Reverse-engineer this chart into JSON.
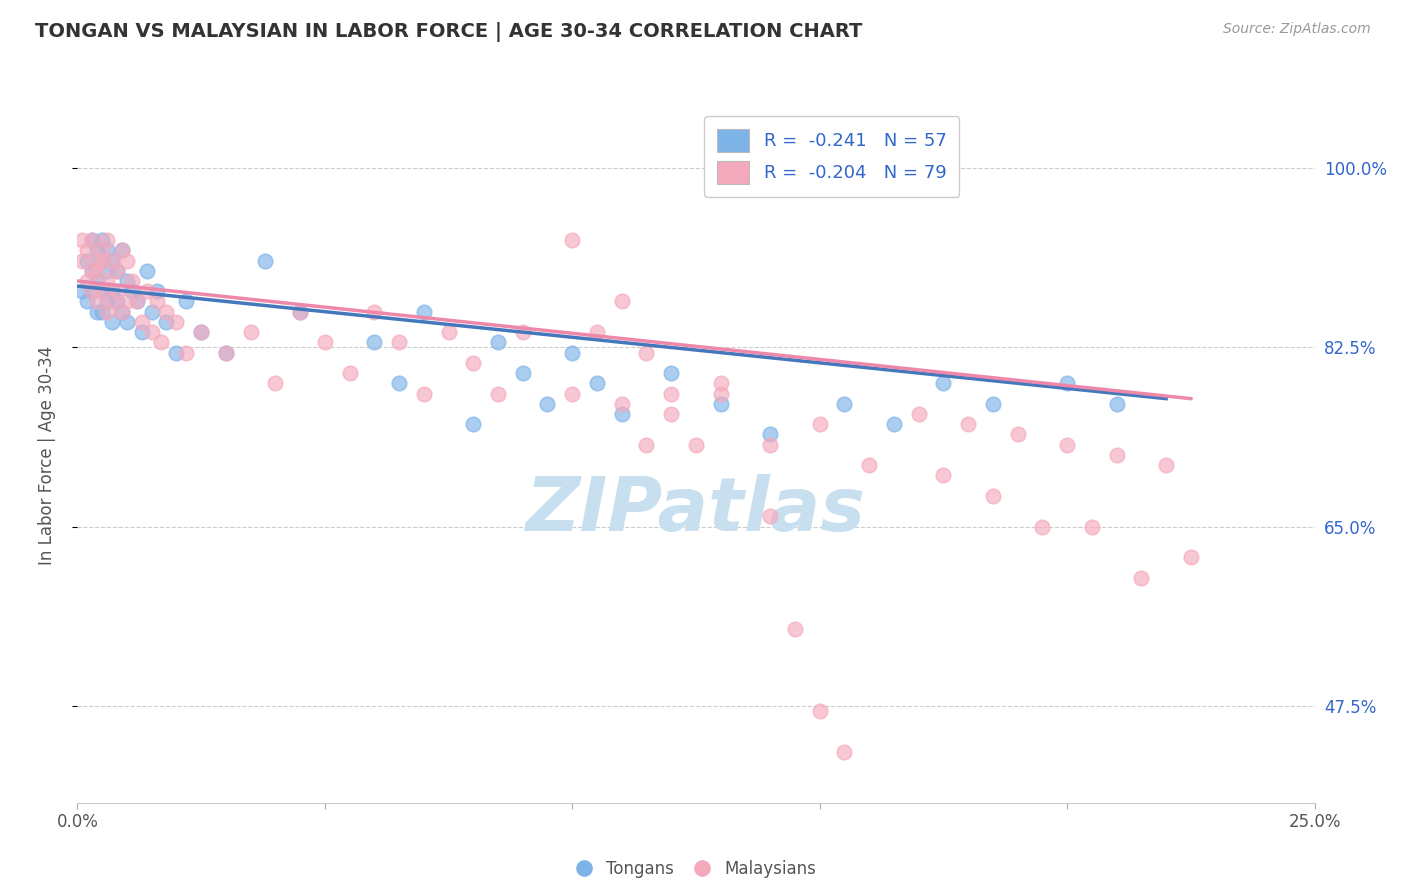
{
  "title": "TONGAN VS MALAYSIAN IN LABOR FORCE | AGE 30-34 CORRELATION CHART",
  "source_text": "Source: ZipAtlas.com",
  "ylabel": "In Labor Force | Age 30-34",
  "xlim": [
    0.0,
    0.25
  ],
  "ylim": [
    0.38,
    1.06
  ],
  "xtick_positions": [
    0.0,
    0.05,
    0.1,
    0.15,
    0.2,
    0.25
  ],
  "xticklabels": [
    "0.0%",
    "",
    "",
    "",
    "",
    "25.0%"
  ],
  "ytick_positions": [
    0.475,
    0.65,
    0.825,
    1.0
  ],
  "yticklabels": [
    "47.5%",
    "65.0%",
    "82.5%",
    "100.0%"
  ],
  "tongan_color": "#7EB3E8",
  "malaysian_color": "#F4AABC",
  "tongan_line_color": "#4477BB",
  "malaysian_line_color": "#EE88AA",
  "tongan_R": -0.241,
  "tongan_N": 57,
  "malaysian_R": -0.204,
  "malaysian_N": 79,
  "background_color": "#ffffff",
  "grid_color": "#cccccc",
  "watermark_text": "ZIPatlas",
  "watermark_color": "#c8dff0",
  "legend_text_color": "#3366cc",
  "ton_line_x0": 0.0,
  "ton_line_y0": 0.885,
  "ton_line_x1": 0.22,
  "ton_line_y1": 0.775,
  "mal_line_x0": 0.0,
  "mal_line_y0": 0.89,
  "mal_line_x1": 0.225,
  "mal_line_y1": 0.775,
  "ton_scatter_x": [
    0.001,
    0.002,
    0.002,
    0.003,
    0.003,
    0.003,
    0.004,
    0.004,
    0.004,
    0.005,
    0.005,
    0.005,
    0.005,
    0.006,
    0.006,
    0.006,
    0.007,
    0.007,
    0.007,
    0.008,
    0.008,
    0.009,
    0.009,
    0.01,
    0.01,
    0.011,
    0.012,
    0.013,
    0.014,
    0.015,
    0.016,
    0.018,
    0.02,
    0.022,
    0.025,
    0.03,
    0.038,
    0.045,
    0.06,
    0.065,
    0.07,
    0.08,
    0.085,
    0.09,
    0.095,
    0.1,
    0.105,
    0.11,
    0.12,
    0.13,
    0.14,
    0.155,
    0.165,
    0.175,
    0.185,
    0.2,
    0.21
  ],
  "ton_scatter_y": [
    0.88,
    0.91,
    0.87,
    0.93,
    0.9,
    0.88,
    0.92,
    0.89,
    0.86,
    0.91,
    0.88,
    0.93,
    0.86,
    0.9,
    0.87,
    0.92,
    0.88,
    0.91,
    0.85,
    0.9,
    0.87,
    0.92,
    0.86,
    0.89,
    0.85,
    0.88,
    0.87,
    0.84,
    0.9,
    0.86,
    0.88,
    0.85,
    0.82,
    0.87,
    0.84,
    0.82,
    0.91,
    0.86,
    0.83,
    0.79,
    0.86,
    0.75,
    0.83,
    0.8,
    0.77,
    0.82,
    0.79,
    0.76,
    0.8,
    0.77,
    0.74,
    0.77,
    0.75,
    0.79,
    0.77,
    0.79,
    0.77
  ],
  "mal_scatter_x": [
    0.001,
    0.001,
    0.002,
    0.002,
    0.003,
    0.003,
    0.003,
    0.004,
    0.004,
    0.004,
    0.005,
    0.005,
    0.005,
    0.006,
    0.006,
    0.006,
    0.007,
    0.007,
    0.008,
    0.008,
    0.009,
    0.009,
    0.01,
    0.01,
    0.011,
    0.012,
    0.013,
    0.014,
    0.015,
    0.016,
    0.017,
    0.018,
    0.02,
    0.022,
    0.025,
    0.03,
    0.035,
    0.04,
    0.045,
    0.05,
    0.055,
    0.06,
    0.065,
    0.07,
    0.075,
    0.08,
    0.085,
    0.09,
    0.1,
    0.105,
    0.11,
    0.115,
    0.12,
    0.125,
    0.13,
    0.14,
    0.15,
    0.16,
    0.17,
    0.175,
    0.18,
    0.185,
    0.19,
    0.195,
    0.2,
    0.205,
    0.21,
    0.215,
    0.22,
    0.225,
    0.1,
    0.11,
    0.115,
    0.12,
    0.13,
    0.14,
    0.145,
    0.15,
    0.155
  ],
  "mal_scatter_y": [
    0.91,
    0.93,
    0.89,
    0.92,
    0.9,
    0.88,
    0.93,
    0.91,
    0.87,
    0.9,
    0.92,
    0.88,
    0.91,
    0.89,
    0.93,
    0.86,
    0.91,
    0.87,
    0.9,
    0.88,
    0.92,
    0.86,
    0.91,
    0.87,
    0.89,
    0.87,
    0.85,
    0.88,
    0.84,
    0.87,
    0.83,
    0.86,
    0.85,
    0.82,
    0.84,
    0.82,
    0.84,
    0.79,
    0.86,
    0.83,
    0.8,
    0.86,
    0.83,
    0.78,
    0.84,
    0.81,
    0.78,
    0.84,
    0.78,
    0.84,
    0.77,
    0.73,
    0.78,
    0.73,
    0.78,
    0.73,
    0.75,
    0.71,
    0.76,
    0.7,
    0.75,
    0.68,
    0.74,
    0.65,
    0.73,
    0.65,
    0.72,
    0.6,
    0.71,
    0.62,
    0.93,
    0.87,
    0.82,
    0.76,
    0.79,
    0.66,
    0.55,
    0.47,
    0.43
  ]
}
